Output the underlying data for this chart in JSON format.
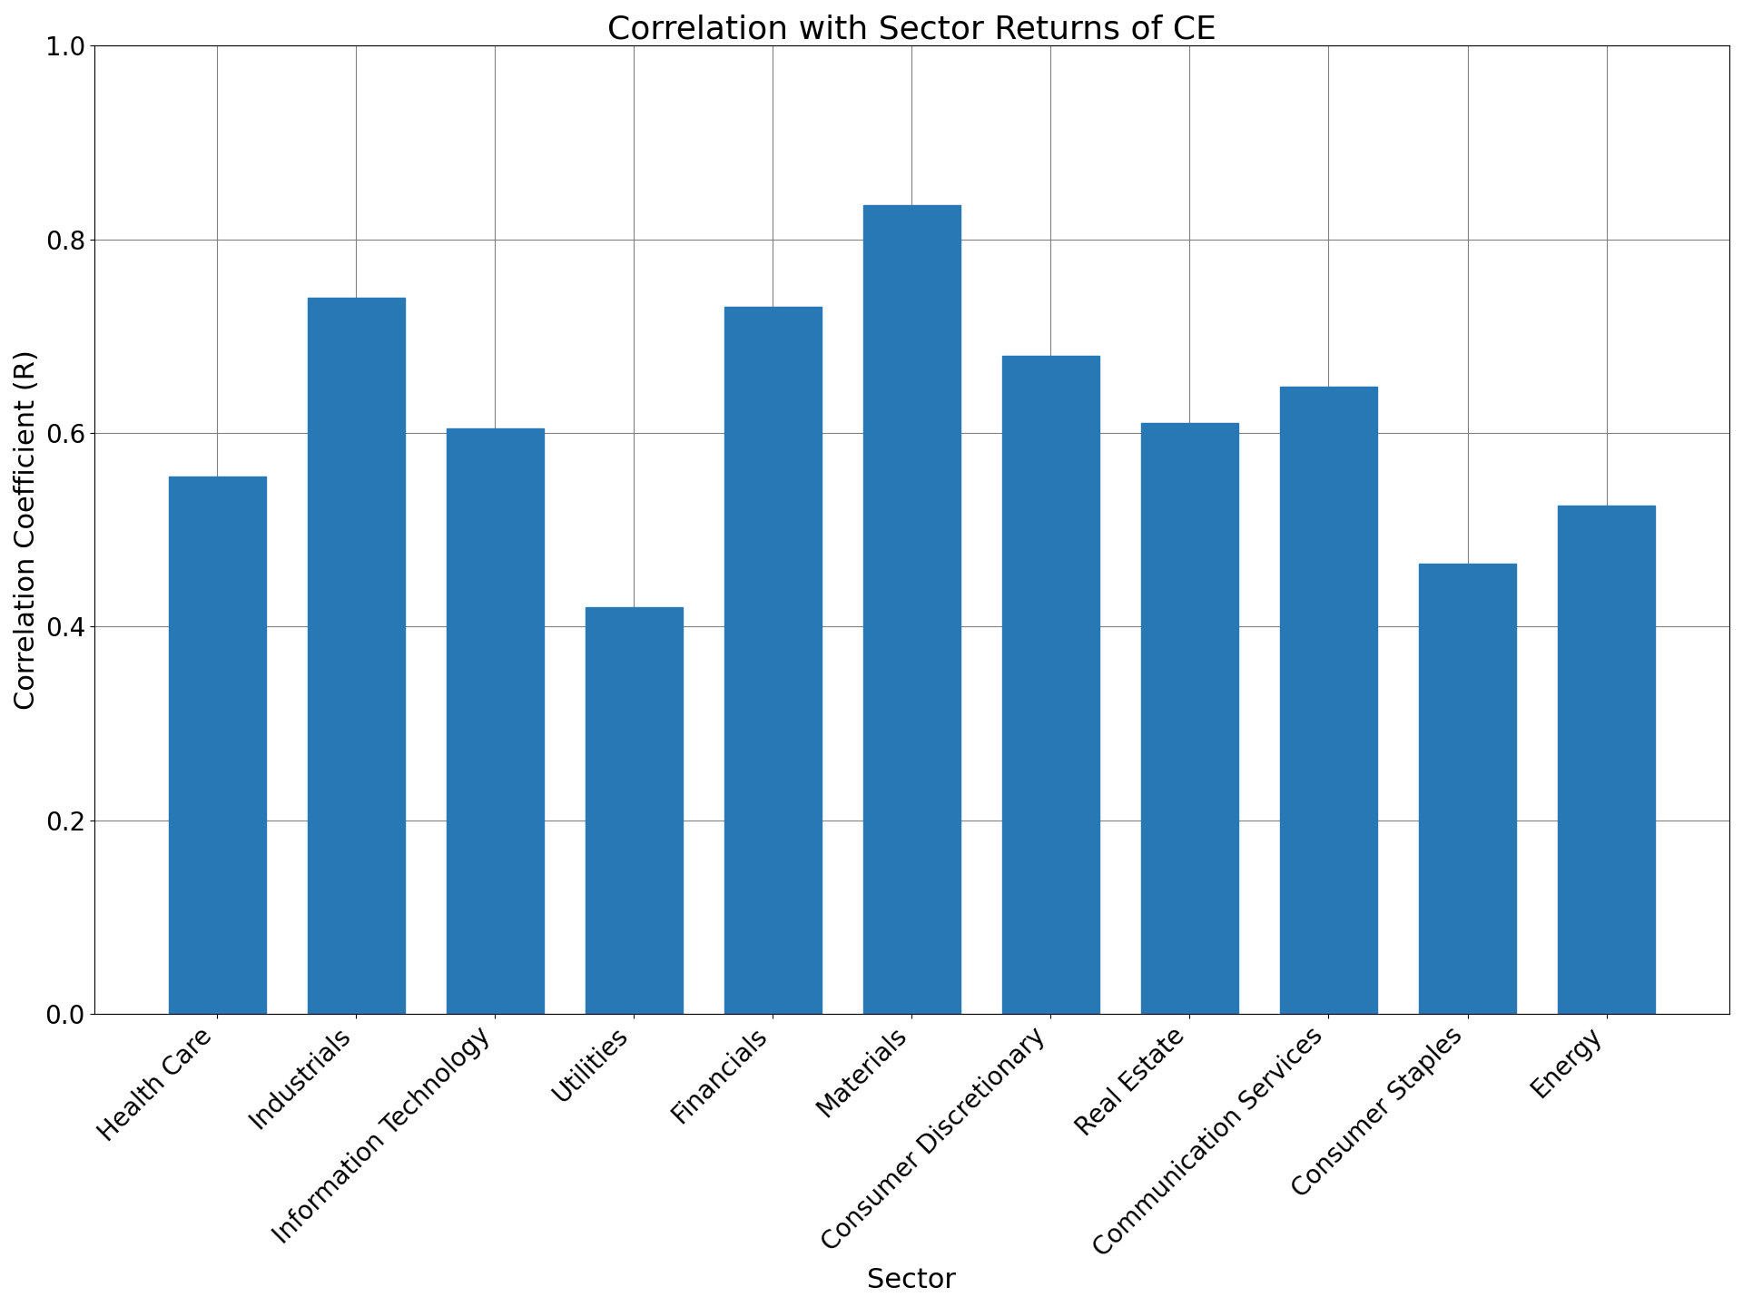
{
  "title": "Correlation with Sector Returns of CE",
  "xlabel": "Sector",
  "ylabel": "Correlation Coefficient (R)",
  "categories": [
    "Health Care",
    "Industrials",
    "Information Technology",
    "Utilities",
    "Financials",
    "Materials",
    "Consumer Discretionary",
    "Real Estate",
    "Communication Services",
    "Consumer Staples",
    "Energy"
  ],
  "values": [
    0.555,
    0.74,
    0.605,
    0.42,
    0.73,
    0.835,
    0.68,
    0.61,
    0.648,
    0.465,
    0.525
  ],
  "bar_color": "#2878b5",
  "ylim": [
    0.0,
    1.0
  ],
  "yticks": [
    0.0,
    0.2,
    0.4,
    0.6,
    0.8,
    1.0
  ],
  "title_fontsize": 26,
  "label_fontsize": 22,
  "tick_fontsize": 20,
  "bar_width": 0.7,
  "figsize": [
    19.2,
    14.4
  ],
  "dpi": 100
}
